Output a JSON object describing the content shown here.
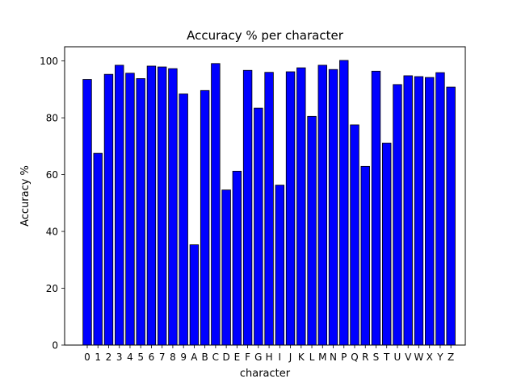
{
  "chart_data": {
    "type": "bar",
    "title": "Accuracy % per character",
    "xlabel": "character",
    "ylabel": "Accuracy %",
    "ylim": [
      0,
      105
    ],
    "yticks": [
      0,
      20,
      40,
      60,
      80,
      100
    ],
    "grid": false,
    "bar_color": "#0000ff",
    "edge_color": "#000000",
    "categories": [
      "0",
      "1",
      "2",
      "3",
      "4",
      "5",
      "6",
      "7",
      "8",
      "9",
      "A",
      "B",
      "C",
      "D",
      "E",
      "F",
      "G",
      "H",
      "I",
      "J",
      "K",
      "L",
      "M",
      "N",
      "P",
      "Q",
      "R",
      "S",
      "T",
      "U",
      "V",
      "W",
      "X",
      "Y",
      "Z"
    ],
    "values": [
      93.5,
      67.5,
      95.3,
      98.5,
      95.7,
      93.8,
      98.2,
      97.9,
      97.3,
      88.4,
      35.3,
      89.6,
      99.1,
      54.6,
      61.2,
      96.7,
      83.4,
      96.0,
      56.3,
      96.2,
      97.6,
      80.5,
      98.5,
      97.0,
      100.2,
      77.5,
      62.9,
      96.4,
      71.1,
      91.7,
      94.8,
      94.5,
      94.2,
      95.9,
      90.8
    ]
  }
}
